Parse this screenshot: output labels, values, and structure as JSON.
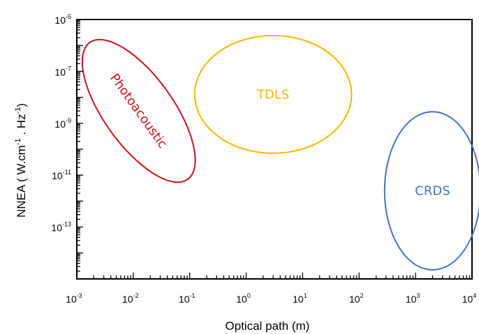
{
  "chart_data": {
    "type": "scatter",
    "title": "",
    "xlabel": "Optical path (m)",
    "ylabel": {
      "main": "NNEA ( W.cm",
      "exp1": "-1",
      "mid": " . Hz",
      "exp2": "-1",
      "tail": ")"
    },
    "x_scale": "log",
    "y_scale": "log",
    "xlim": [
      0.001,
      10000
    ],
    "ylim": [
      1e-15,
      1e-05
    ],
    "grid": false,
    "legend": "none",
    "x_ticks": [
      {
        "base": "10",
        "exp": "-3",
        "value": 0.001
      },
      {
        "base": "10",
        "exp": "-2",
        "value": 0.01
      },
      {
        "base": "10",
        "exp": "-1",
        "value": 0.1
      },
      {
        "base": "10",
        "exp": "0",
        "value": 1
      },
      {
        "base": "10",
        "exp": "1",
        "value": 10
      },
      {
        "base": "10",
        "exp": "2",
        "value": 100
      },
      {
        "base": "10",
        "exp": "3",
        "value": 1000
      },
      {
        "base": "10",
        "exp": "4",
        "value": 10000
      }
    ],
    "y_ticks": [
      {
        "base": "10",
        "exp": "-5",
        "value": 1e-05
      },
      {
        "base": "10",
        "exp": "-7",
        "value": 1e-07
      },
      {
        "base": "10",
        "exp": "-9",
        "value": 1e-09
      },
      {
        "base": "10",
        "exp": "-11",
        "value": 1e-11
      },
      {
        "base": "10",
        "exp": "-13",
        "value": 1e-13
      }
    ],
    "regions": [
      {
        "label": "Photoacoustic",
        "color": "#c0171b",
        "shape": "ellipse",
        "center": [
          0.0125,
          3e-09
        ],
        "x_extent": [
          0.0025,
          0.16
        ],
        "y_extent": [
          1.6e-11,
          5e-06
        ],
        "tilt": "rotated",
        "label_orientation": "rotated"
      },
      {
        "label": "TDLS",
        "color": "#f5b800",
        "shape": "ellipse",
        "center": [
          3,
          1.3e-08
        ],
        "x_extent": [
          0.15,
          90
        ],
        "y_extent": [
          1.1e-10,
          3.8e-06
        ],
        "label_orientation": "horizontal"
      },
      {
        "label": "CRDS",
        "color": "#4472c4",
        "shape": "ellipse",
        "center": [
          2000,
          2.5e-12
        ],
        "x_extent": [
          200,
          10000
        ],
        "y_extent": [
          2e-15,
          2.5e-09
        ],
        "label_orientation": "horizontal"
      }
    ]
  }
}
